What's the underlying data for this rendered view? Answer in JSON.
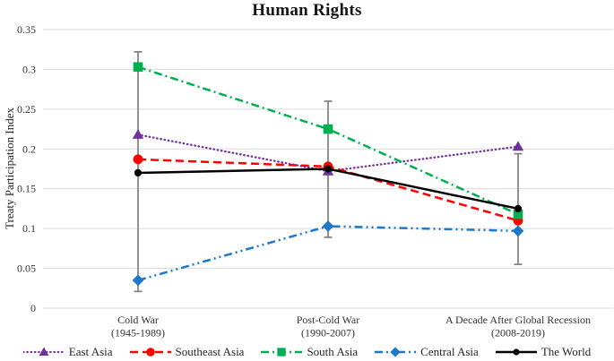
{
  "chart_data": {
    "type": "line",
    "title": "Human Rights",
    "ylabel": "Treaty Participation Index",
    "ylim": [
      0,
      0.35
    ],
    "grid": true,
    "legend_position": "bottom",
    "yticks": [
      {
        "label": "0",
        "value": 0
      },
      {
        "label": "0.05",
        "value": 0.05
      },
      {
        "label": "0.1",
        "value": 0.1
      },
      {
        "label": "0.15",
        "value": 0.15
      },
      {
        "label": "0.2",
        "value": 0.2
      },
      {
        "label": "0.25",
        "value": 0.25
      },
      {
        "label": "0.3",
        "value": 0.3
      },
      {
        "label": "0.35",
        "value": 0.35
      }
    ],
    "categories": [
      [
        "Cold War",
        "(1945-1989)"
      ],
      [
        "Post-Cold War",
        "(1990-2007)"
      ],
      [
        "A Decade After Global Recession",
        "(2008-2019)"
      ]
    ],
    "series": [
      {
        "name": "East Asia",
        "color": "#7030A0",
        "marker": "triangle",
        "line": "dotted",
        "values": [
          0.218,
          0.172,
          0.203
        ]
      },
      {
        "name": "Southeast Asia",
        "color": "#FF0000",
        "marker": "circle",
        "line": "dashed",
        "values": [
          0.187,
          0.178,
          0.11
        ]
      },
      {
        "name": "South Asia",
        "color": "#00B050",
        "marker": "square",
        "line": "dashdot",
        "values": [
          0.303,
          0.225,
          0.118
        ]
      },
      {
        "name": "Central Asia",
        "color": "#1E78C8",
        "marker": "diamond",
        "line": "dashdotdot",
        "values": [
          0.035,
          0.103,
          0.097
        ]
      },
      {
        "name": "The World",
        "color": "#000000",
        "marker": "dot",
        "line": "solid",
        "values": [
          0.17,
          0.175,
          0.125
        ]
      }
    ],
    "error_bars": [
      {
        "low": 0.021,
        "high": 0.322
      },
      {
        "low": 0.089,
        "high": 0.26
      },
      {
        "low": 0.055,
        "high": 0.194
      }
    ]
  },
  "colors": {
    "gridline": "#D9D9D9",
    "error_bar": "#808080",
    "tick_text": "#333333"
  }
}
